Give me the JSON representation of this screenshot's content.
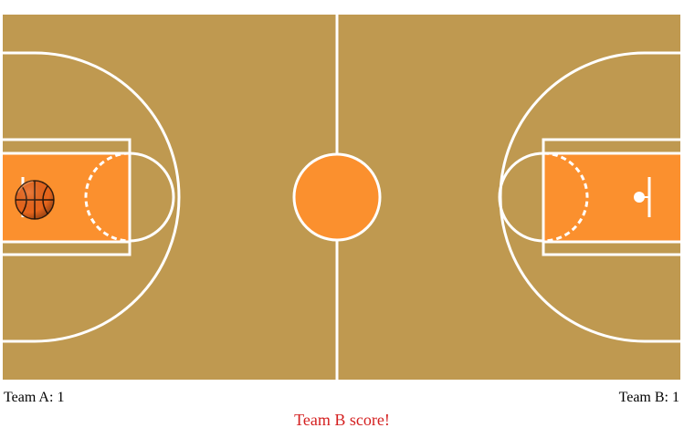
{
  "scoreboard": {
    "team_a": {
      "name": "Team A",
      "score": "1"
    },
    "team_b": {
      "name": "Team B",
      "score": "1"
    }
  },
  "status_message": "Team B score!",
  "colors": {
    "court": "#bf9950",
    "paint": "#fb902e",
    "lines": "#ffffff",
    "status": "#d41f1f"
  },
  "icons": {
    "ball": "basketball-icon",
    "hoop_right": "hoop-icon"
  }
}
